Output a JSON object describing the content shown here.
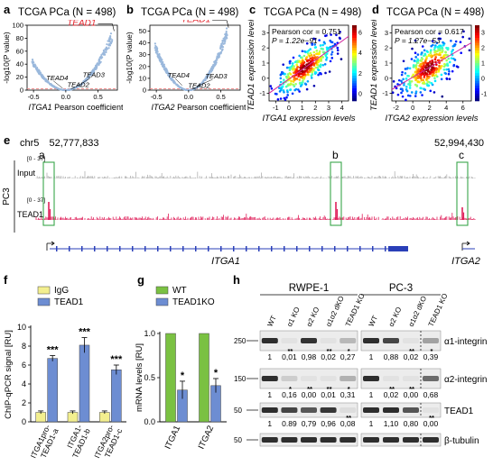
{
  "panels": {
    "a": {
      "letter": "a",
      "title": "TCGA PCa (N = 498)",
      "xlabel_italic": "ITGA1",
      "xlabel_rest": " Pearson coefficient",
      "ylabel": "-log10(P value)",
      "xticks": [
        "-0.5",
        "0.0",
        "0.5"
      ],
      "yticks": [
        "0",
        "20",
        "40",
        "60",
        "80",
        "100"
      ],
      "annotations": [
        "TEAD1",
        "TEAD4",
        "TEAD2",
        "TEAD3"
      ],
      "highlight_color": "#e3222a",
      "point_color": "#9ab8dc"
    },
    "b": {
      "letter": "b",
      "title": "TCGA PCa (N = 498)",
      "xlabel_italic": "ITGA2",
      "xlabel_rest": " Pearson coefficient",
      "ylabel": "-log10(P value)",
      "xticks": [
        "-0.5",
        "0.0",
        "0.5"
      ],
      "yticks": [
        "0",
        "10",
        "20",
        "30",
        "40",
        "50"
      ],
      "annotations": [
        "TEAD1",
        "TEAD4",
        "TEAD3",
        "TEAD2"
      ]
    },
    "c": {
      "letter": "c",
      "title": "TCGA PCa (N = 498)",
      "stats": [
        "Pearson cor = 0.751",
        "P = 1.22e−91"
      ],
      "xlabel": "ITGA1 expression levels",
      "ylabel": "TEAD1 expression levels",
      "xticks": [
        "-1",
        "0",
        "1",
        "2",
        "3",
        "4"
      ],
      "yticks": [
        "-1",
        "0",
        "1",
        "2",
        "3"
      ],
      "colorbar_ticks": [
        "6",
        "4",
        "2",
        "0"
      ]
    },
    "d": {
      "letter": "d",
      "title": "TCGA PCa (N = 498)",
      "stats": [
        "Pearson cor = 0.617",
        "P = 1.27e−53"
      ],
      "xlabel": "ITGA2 expression levels",
      "ylabel": "TEAD1 expression levels",
      "xticks": [
        "-2",
        "0",
        "2",
        "4",
        "6"
      ],
      "yticks": [
        "-1",
        "0",
        "1",
        "2",
        "3"
      ],
      "colorbar_ticks": [
        "3",
        "2",
        "1",
        "0",
        "-1"
      ]
    },
    "e": {
      "letter": "e",
      "chrom": "chr5",
      "start": "52,777,833",
      "end": "52,994,430",
      "cell_line": "PC3",
      "tracks": [
        {
          "name": "Input",
          "range": "[0 - 37]",
          "color": "#b0b0b0"
        },
        {
          "name": "TEAD1",
          "range": "[0 - 37]",
          "color": "#e01f5a"
        }
      ],
      "peaks": [
        "a",
        "b",
        "c"
      ],
      "genes": [
        "ITGA1",
        "ITGA2"
      ],
      "gene_color": "#2a3fb8",
      "box_color": "#3aa64a"
    },
    "f": {
      "letter": "f",
      "ylabel": "ChIP-qPCR signal [RU]",
      "legend": [
        "IgG",
        "TEAD1"
      ],
      "yticks": [
        "0",
        "2",
        "4",
        "6",
        "8",
        "10"
      ],
      "sig": [
        "***",
        "***",
        "***"
      ]
    },
    "g": {
      "letter": "g",
      "ylabel": "mRNA levels [RU]",
      "legend": [
        "WT",
        "TEAD1KO"
      ],
      "yticks": [
        "0.0",
        "0.5",
        "1.0"
      ],
      "sig": [
        "*",
        "*"
      ]
    },
    "h": {
      "letter": "h",
      "groups": [
        "RWPE-1",
        "PC-3"
      ],
      "lanes_rwpe": [
        "WT",
        "α1 KO",
        "α2 KO",
        "α1α2 dKO",
        "TEAD1 KO"
      ],
      "lanes_pc3": [
        "WT",
        "α2 KO",
        "α1α2 dKO",
        "TEAD1 KO"
      ],
      "rows": [
        {
          "marker": "250",
          "label": "α1-integrin",
          "quant": [
            "1",
            "0,01",
            "0,98",
            "0,02",
            "0,27",
            "1",
            "0,88",
            "0,02",
            "0,39"
          ],
          "stars": [
            "",
            "**",
            "",
            "**",
            "*",
            "",
            "",
            "**",
            "*"
          ]
        },
        {
          "marker": "150",
          "label": "α2-integrin",
          "quant": [
            "1",
            "0,16",
            "0,00",
            "0,01",
            "0,31",
            "1",
            "0,02",
            "0,00",
            "0,68"
          ],
          "stars": [
            "",
            "*",
            "**",
            "**",
            "*",
            "",
            "**",
            "**",
            ""
          ]
        },
        {
          "marker": "50",
          "label": "TEAD1",
          "quant": [
            "1",
            "0.89",
            "0,79",
            "0,96",
            "0,08",
            "1",
            "1,10",
            "0,80",
            "0,00"
          ],
          "stars": [
            "",
            "",
            "",
            "",
            "**",
            "",
            "",
            "",
            "**"
          ]
        },
        {
          "marker": "50",
          "label": "β-tubulin"
        }
      ]
    }
  },
  "chart_data": [
    {
      "type": "scatter",
      "panel": "a",
      "title": "TCGA PCa (N = 498)",
      "xlabel": "ITGA1 Pearson coefficient",
      "ylabel": "-log10(P value)",
      "xlim": [
        -0.6,
        0.8
      ],
      "ylim": [
        0,
        100
      ],
      "labeled_points": [
        {
          "name": "TEAD1",
          "x": 0.75,
          "y": 91
        },
        {
          "name": "TEAD4",
          "x": -0.05,
          "y": 3
        },
        {
          "name": "TEAD2",
          "x": 0.08,
          "y": 2
        },
        {
          "name": "TEAD3",
          "x": 0.18,
          "y": 6
        }
      ]
    },
    {
      "type": "scatter",
      "panel": "b",
      "title": "TCGA PCa (N = 498)",
      "xlabel": "ITGA2 Pearson coefficient",
      "ylabel": "-log10(P value)",
      "xlim": [
        -0.6,
        0.8
      ],
      "ylim": [
        0,
        55
      ],
      "labeled_points": [
        {
          "name": "TEAD1",
          "x": 0.62,
          "y": 53
        },
        {
          "name": "TEAD4",
          "x": -0.1,
          "y": 4
        },
        {
          "name": "TEAD3",
          "x": 0.12,
          "y": 3
        },
        {
          "name": "TEAD2",
          "x": 0.05,
          "y": 1
        }
      ]
    },
    {
      "type": "scatter",
      "panel": "c",
      "xlabel": "ITGA1 expression levels",
      "ylabel": "TEAD1 expression levels",
      "xlim": [
        -1.5,
        4.5
      ],
      "ylim": [
        -1.5,
        3.5
      ],
      "pearson_cor": 0.751,
      "p_value": "1.22e-91"
    },
    {
      "type": "scatter",
      "panel": "d",
      "xlabel": "ITGA2 expression levels",
      "ylabel": "TEAD1 expression levels",
      "xlim": [
        -2.5,
        7
      ],
      "ylim": [
        -1.5,
        3.5
      ],
      "pearson_cor": 0.617,
      "p_value": "1.27e-53"
    },
    {
      "type": "bar",
      "panel": "f",
      "categories": [
        "ITGA1pro-TEAD1-a",
        "ITGA1-TEAD1-b",
        "ITGA2pro-TEAD1-c"
      ],
      "ylabel": "ChIP-qPCR signal [RU]",
      "ylim": [
        0,
        10
      ],
      "series": [
        {
          "name": "IgG",
          "values": [
            1,
            1,
            1
          ],
          "errors": [
            0.15,
            0.15,
            0.15
          ],
          "color": "#f3ef8f"
        },
        {
          "name": "TEAD1",
          "values": [
            6.7,
            8.1,
            5.5
          ],
          "errors": [
            0.3,
            0.8,
            0.5
          ],
          "color": "#6d8dd2"
        }
      ]
    },
    {
      "type": "bar",
      "panel": "g",
      "categories": [
        "ITGA1",
        "ITGA2"
      ],
      "ylabel": "mRNA levels [RU]",
      "ylim": [
        0,
        1.0
      ],
      "series": [
        {
          "name": "WT",
          "values": [
            1.0,
            1.0
          ],
          "color": "#7ac142"
        },
        {
          "name": "TEAD1KO",
          "values": [
            0.36,
            0.41
          ],
          "errors": [
            0.1,
            0.08
          ],
          "color": "#6d8dd2"
        }
      ]
    }
  ]
}
